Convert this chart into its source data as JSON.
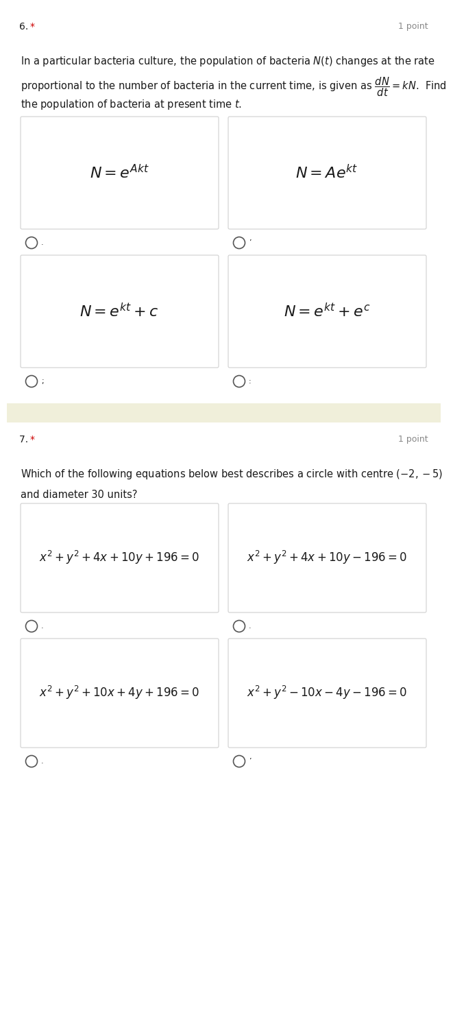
{
  "bg_color": "#ffffff",
  "sep_color": "#f0efda",
  "card_bg": "#ffffff",
  "card_border": "#d0d0d0",
  "text_color": "#1a1a1a",
  "red_color": "#cc0000",
  "gray_color": "#888888",
  "radio_color": "#555555",
  "q1_number": "6.  ",
  "q1_star": "*",
  "q1_points": "1 point",
  "q1_line1": "In a particular bacteria culture, the population of bacteria $N(t)$ changes at the rate",
  "q1_line2": "proportional to the number of bacteria in the current time, is given as $\\dfrac{dN}{dt} = kN$.  Find",
  "q1_line3": "the population of bacteria at present time $t$.",
  "q1_opts": [
    "$N = e^{Akt}$",
    "$N = Ae^{kt}$",
    "$N = e^{kt}+c$",
    "$N = e^{kt}+e^c$"
  ],
  "q2_number": "7.  ",
  "q2_star": "*",
  "q2_points": "1 point",
  "q2_line1": "Which of the following equations below best describes a circle with centre $(-2,-5)$",
  "q2_line2": "and diameter 30 units?",
  "q2_opts": [
    "$x^2+y^2+4x+10y+196=0$",
    "$x^2+y^2+4x+10y-196=0$",
    "$x^2+y^2+10x+4y+196=0$",
    "$x^2+y^2-10x-4y-196=0$"
  ]
}
